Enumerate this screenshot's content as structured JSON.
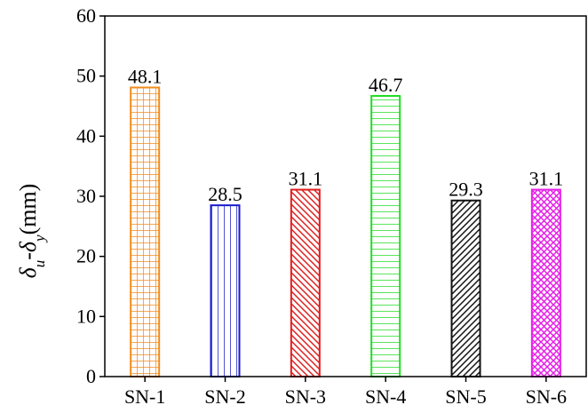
{
  "chart_data": {
    "type": "bar",
    "categories": [
      "SN-1",
      "SN-2",
      "SN-3",
      "SN-4",
      "SN-5",
      "SN-6"
    ],
    "values": [
      48.1,
      28.5,
      31.1,
      46.7,
      29.3,
      31.1
    ],
    "value_labels": [
      "48.1",
      "28.5",
      "31.1",
      "46.7",
      "29.3",
      "31.1"
    ],
    "title": "",
    "xlabel": "",
    "ylabel": {
      "delta": "δ",
      "sub_u": "u",
      "dash": "-",
      "sub_y": "y",
      "unit": "(mm)"
    },
    "ylim": [
      0,
      60
    ],
    "yticks": [
      "0",
      "10",
      "20",
      "30",
      "40",
      "50",
      "60"
    ],
    "grid": false,
    "bar_colors": [
      "#f28c1e",
      "#1a1acc",
      "#e01e1e",
      "#22dd22",
      "#111111",
      "#e61ee6"
    ],
    "bar_patterns": [
      "grid",
      "vertical",
      "diagonal-down",
      "horizontal",
      "diagonal-up",
      "crosshatch-diagonal"
    ]
  }
}
